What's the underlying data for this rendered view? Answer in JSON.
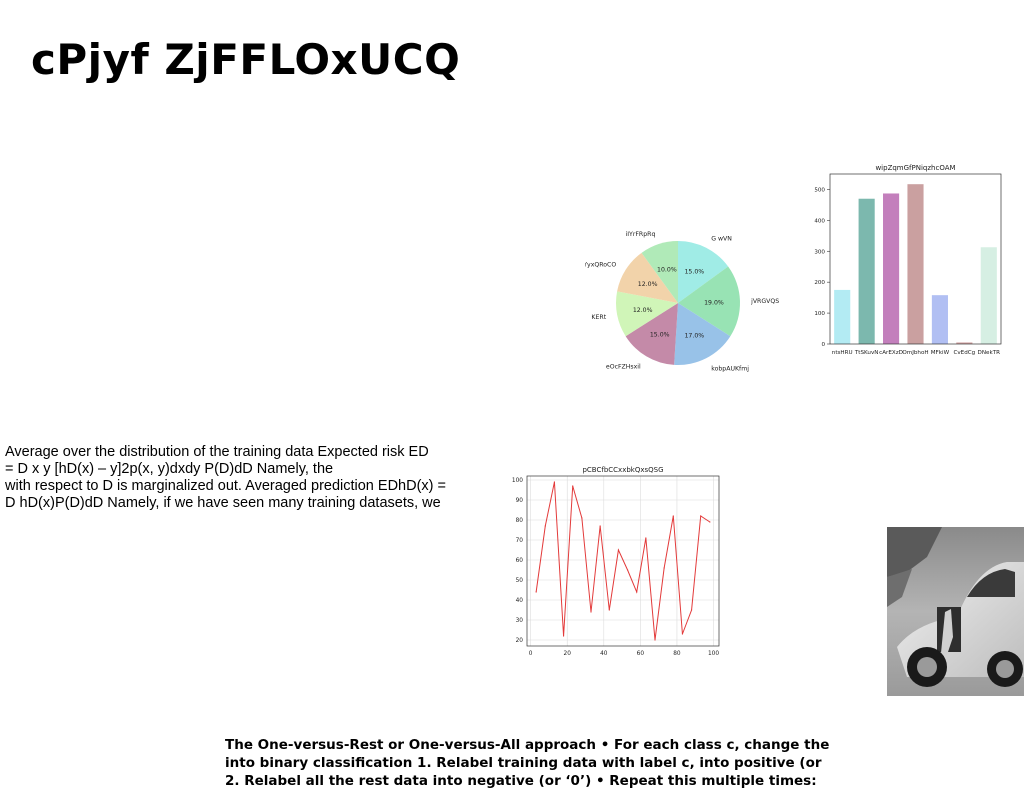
{
  "slide": {
    "title": "cPjyf ZjFFLOxUCQ",
    "paragraph_lines": [
      "Average over the distribution of the training data Expected risk ED",
      "= D x y [hD(x) – y]2p(x, y)dxdy P(D)dD Namely, the",
      "with respect to D is marginalized out. Averaged prediction EDhD(x) =",
      "D hD(x)P(D)dD Namely, if we have seen many training datasets, we"
    ],
    "bottom_lines": [
      "The One-versus-Rest or One-versus-All approach • For each class c, change the",
      "into binary classification 1. Relabel training data with label c, into positive (or",
      "2. Relabel all the rest data into negative (or ‘0’) • Repeat this multiple times:"
    ]
  },
  "chart_data": [
    {
      "type": "pie",
      "title": "",
      "labels": [
        "G wVN",
        "jVRGVQS",
        "kobpAUKfmj",
        "eOcFZHsxil",
        "KERt",
        "YyxQRoCO",
        "iIYrFRpRq"
      ],
      "values": [
        15.0,
        19.0,
        17.0,
        15.0,
        12.0,
        12.0,
        10.0
      ],
      "value_labels": [
        "15.0%",
        "19.0%",
        "17.0%",
        "15.0%",
        "12.0%",
        "12.0%",
        "10.0%"
      ],
      "colors": [
        "#a0ece6",
        "#98e3b4",
        "#98c2e8",
        "#c48aa8",
        "#d0f5b8",
        "#f2d3aa",
        "#b0eab8"
      ],
      "start_angle": 90,
      "direction": "clockwise"
    },
    {
      "type": "bar",
      "title": "wipZqmGfPNiqzhcOAM",
      "categories": [
        "ntsHRU",
        "TtSKuvN",
        "cArEXzD",
        "OmJbhoH",
        "MFkiW",
        "CvEdCg",
        "DNekTR"
      ],
      "values": [
        175,
        470,
        487,
        517,
        158,
        5,
        313
      ],
      "colors": [
        "#b3ebf3",
        "#7cb8ae",
        "#c37fbc",
        "#caa0a0",
        "#b1bff3",
        "#d2a0a0",
        "#d6efe3"
      ],
      "ylim": [
        0,
        550
      ],
      "yticks": [
        0,
        100,
        200,
        300,
        400,
        500
      ],
      "grid": false
    },
    {
      "type": "line",
      "title": "pCBCfbCCxxbkQxsQSG",
      "x": [
        3,
        8,
        13,
        18,
        23,
        28,
        33,
        38,
        43,
        48,
        53,
        58,
        63,
        68,
        73,
        78,
        83,
        88,
        93,
        98
      ],
      "y": [
        44,
        77,
        99,
        22,
        97,
        81,
        34,
        77,
        35,
        65,
        55,
        44,
        71,
        20,
        56,
        82,
        23,
        35,
        82,
        79
      ],
      "color": "#e33a3a",
      "xlim": [
        -2,
        103
      ],
      "ylim": [
        17,
        102
      ],
      "xticks": [
        0,
        20,
        40,
        60,
        80,
        100
      ],
      "yticks": [
        20,
        30,
        40,
        50,
        60,
        70,
        80,
        90,
        100
      ],
      "grid": true
    }
  ]
}
